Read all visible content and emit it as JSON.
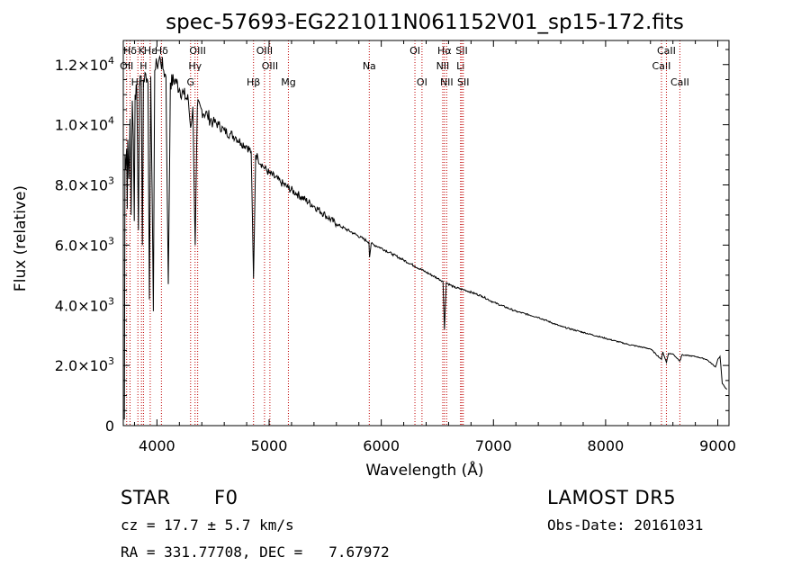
{
  "chart_data": {
    "type": "line",
    "title": "spec-57693-EG221011N061152V01_sp15-172.fits",
    "xlabel": "Wavelength (Å)",
    "ylabel": "Flux (relative)",
    "xlim": [
      3700,
      9100
    ],
    "ylim": [
      0,
      12800
    ],
    "x_ticks": [
      {
        "value": 4000,
        "label": "4000"
      },
      {
        "value": 5000,
        "label": "5000"
      },
      {
        "value": 6000,
        "label": "6000"
      },
      {
        "value": 7000,
        "label": "7000"
      },
      {
        "value": 8000,
        "label": "8000"
      },
      {
        "value": 9000,
        "label": "9000"
      }
    ],
    "y_ticks": [
      {
        "value": 0,
        "mant": "0",
        "exp": ""
      },
      {
        "value": 2000,
        "mant": "2.0×10",
        "exp": "3"
      },
      {
        "value": 4000,
        "mant": "4.0×10",
        "exp": "3"
      },
      {
        "value": 6000,
        "mant": "6.0×10",
        "exp": "3"
      },
      {
        "value": 8000,
        "mant": "8.0×10",
        "exp": "3"
      },
      {
        "value": 10000,
        "mant": "1.0×10",
        "exp": "4"
      },
      {
        "value": 12000,
        "mant": "1.2×10",
        "exp": "4"
      }
    ],
    "line_color": "#000000",
    "marker_color": "#c00000",
    "spectrum_points": [
      [
        3710,
        200
      ],
      [
        3715,
        9000
      ],
      [
        3720,
        8500
      ],
      [
        3730,
        9200
      ],
      [
        3735,
        7200
      ],
      [
        3740,
        9500
      ],
      [
        3750,
        8200
      ],
      [
        3760,
        10200
      ],
      [
        3770,
        7000
      ],
      [
        3780,
        10800
      ],
      [
        3790,
        9500
      ],
      [
        3798,
        6800
      ],
      [
        3805,
        11000
      ],
      [
        3820,
        11200
      ],
      [
        3835,
        6500
      ],
      [
        3845,
        11400
      ],
      [
        3860,
        11600
      ],
      [
        3870,
        6000
      ],
      [
        3880,
        11500
      ],
      [
        3900,
        11700
      ],
      [
        3920,
        11400
      ],
      [
        3933,
        4200
      ],
      [
        3945,
        11600
      ],
      [
        3968,
        3800
      ],
      [
        3980,
        11800
      ],
      [
        4000,
        12000
      ],
      [
        4030,
        12200
      ],
      [
        4060,
        11800
      ],
      [
        4080,
        11600
      ],
      [
        4101,
        4700
      ],
      [
        4120,
        11400
      ],
      [
        4160,
        11500
      ],
      [
        4200,
        11200
      ],
      [
        4240,
        11000
      ],
      [
        4280,
        10800
      ],
      [
        4300,
        9900
      ],
      [
        4320,
        10600
      ],
      [
        4341,
        6000
      ],
      [
        4360,
        10600
      ],
      [
        4400,
        10500
      ],
      [
        4450,
        10300
      ],
      [
        4500,
        10100
      ],
      [
        4550,
        10000
      ],
      [
        4600,
        9800
      ],
      [
        4650,
        9700
      ],
      [
        4700,
        9600
      ],
      [
        4750,
        9400
      ],
      [
        4800,
        9300
      ],
      [
        4840,
        9100
      ],
      [
        4861,
        4900
      ],
      [
        4880,
        9000
      ],
      [
        4900,
        8900
      ],
      [
        4950,
        8600
      ],
      [
        5000,
        8400
      ],
      [
        5100,
        8100
      ],
      [
        5172,
        7900
      ],
      [
        5250,
        7700
      ],
      [
        5400,
        7300
      ],
      [
        5500,
        7000
      ],
      [
        5600,
        6700
      ],
      [
        5750,
        6400
      ],
      [
        5890,
        6100
      ],
      [
        5895,
        5600
      ],
      [
        5910,
        6050
      ],
      [
        6000,
        5900
      ],
      [
        6100,
        5700
      ],
      [
        6200,
        5500
      ],
      [
        6300,
        5300
      ],
      [
        6400,
        5100
      ],
      [
        6500,
        4900
      ],
      [
        6550,
        4800
      ],
      [
        6563,
        3200
      ],
      [
        6580,
        4750
      ],
      [
        6650,
        4600
      ],
      [
        6750,
        4500
      ],
      [
        6900,
        4300
      ],
      [
        7000,
        4100
      ],
      [
        7200,
        3800
      ],
      [
        7400,
        3600
      ],
      [
        7600,
        3300
      ],
      [
        7800,
        3100
      ],
      [
        8000,
        2900
      ],
      [
        8200,
        2700
      ],
      [
        8400,
        2550
      ],
      [
        8498,
        2200
      ],
      [
        8510,
        2450
      ],
      [
        8542,
        2100
      ],
      [
        8560,
        2400
      ],
      [
        8600,
        2380
      ],
      [
        8662,
        2150
      ],
      [
        8680,
        2350
      ],
      [
        8800,
        2300
      ],
      [
        8900,
        2200
      ],
      [
        8980,
        1950
      ],
      [
        9000,
        2200
      ],
      [
        9020,
        2300
      ],
      [
        9040,
        1400
      ],
      [
        9080,
        1200
      ]
    ],
    "line_markers": [
      {
        "label": "Hδ",
        "x": 3760,
        "row": 0
      },
      {
        "label": "K",
        "x": 3862,
        "row": 0
      },
      {
        "label": "Hε",
        "x": 3940,
        "row": 0
      },
      {
        "label": "Hδ",
        "x": 4040,
        "row": 0
      },
      {
        "label": "OII",
        "x": 3730,
        "row": 1
      },
      {
        "label": "H",
        "x": 3880,
        "row": 1
      },
      {
        "label": "Hη",
        "x": 3830,
        "row": 2
      },
      {
        "label": "G",
        "x": 4300,
        "row": 3
      },
      {
        "label": "Hγ",
        "x": 4340,
        "row": 1
      },
      {
        "label": "OIII",
        "x": 4363,
        "row": 0
      },
      {
        "label": "Hβ",
        "x": 4861,
        "row": 2
      },
      {
        "label": "OIII",
        "x": 4959,
        "row": 0
      },
      {
        "label": "OIII",
        "x": 5007,
        "row": 1
      },
      {
        "label": "Mg",
        "x": 5172,
        "row": 2
      },
      {
        "label": "Na",
        "x": 5893,
        "row": 1
      },
      {
        "label": "OI",
        "x": 6300,
        "row": 0
      },
      {
        "label": "OI",
        "x": 6363,
        "row": 2
      },
      {
        "label": "Hα",
        "x": 6563,
        "row": 0
      },
      {
        "label": "NII",
        "x": 6548,
        "row": 1
      },
      {
        "label": "NII",
        "x": 6583,
        "row": 2
      },
      {
        "label": "SII",
        "x": 6717,
        "row": 0
      },
      {
        "label": "Li",
        "x": 6707,
        "row": 1
      },
      {
        "label": "SII",
        "x": 6731,
        "row": 2
      },
      {
        "label": "CaII",
        "x": 8498,
        "row": 1
      },
      {
        "label": "CaII",
        "x": 8542,
        "row": 0
      },
      {
        "label": "CaII",
        "x": 8662,
        "row": 2
      }
    ]
  },
  "info": {
    "class_label": "STAR",
    "subclass": "F0",
    "survey": "LAMOST DR5",
    "redshift": "cz = 17.7 ± 5.7 km/s",
    "obs_date": "Obs-Date: 20161031",
    "coords": "RA = 331.77708, DEC =   7.67972"
  }
}
